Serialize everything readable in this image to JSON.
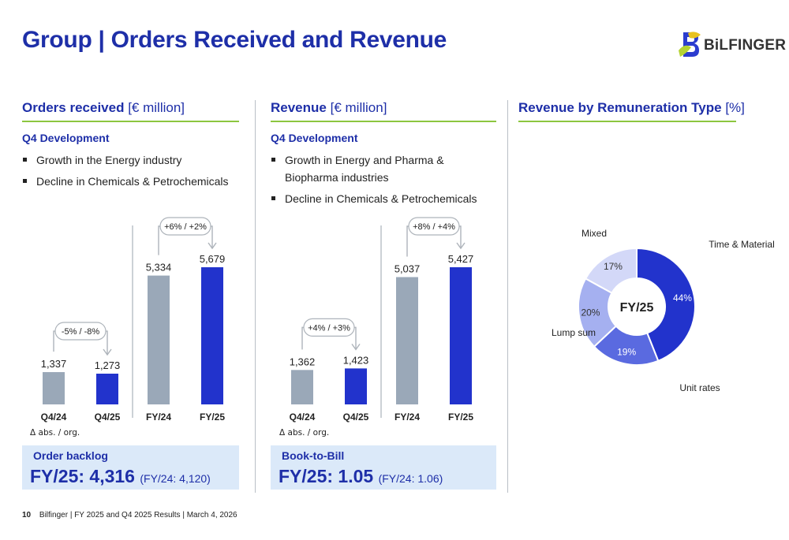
{
  "title": "Group | Orders Received and Revenue",
  "logo": {
    "text": "BiLFINGER",
    "icon": "bilfinger-b-icon"
  },
  "panels": {
    "orders": {
      "heading": "Orders received",
      "unit": "[€ million]",
      "sub_heading": "Q4 Development",
      "bullets": [
        "Growth in the Energy industry",
        "Decline in Chemicals & Petrochemicals"
      ],
      "note": "Δ abs. / org.",
      "kpi": {
        "label": "Order backlog",
        "value": "FY/25: 4,316",
        "prev": "(FY/24: 4,120)"
      }
    },
    "revenue": {
      "heading": "Revenue",
      "unit": "[€ million]",
      "sub_heading": "Q4 Development",
      "bullets": [
        "Growth in Energy and Pharma & Biopharma industries",
        "Decline in Chemicals & Petrochemicals"
      ],
      "note": "Δ abs. / org.",
      "kpi": {
        "label": "Book-to-Bill",
        "value": "FY/25: 1.05",
        "prev": "(FY/24: 1.06)"
      }
    },
    "remuneration": {
      "heading": "Revenue by Remuneration Type",
      "unit": "[%]"
    }
  },
  "colors": {
    "accent": "#1e2fa8",
    "bar_prior": "#9aa8b8",
    "bar_current": "#2233cc",
    "rule": "#8cc63f",
    "kpi_bg": "#dbe9f9"
  },
  "chart_data": [
    {
      "type": "bar",
      "categories": [
        "Q4/24",
        "Q4/25",
        "FY/24",
        "FY/25"
      ],
      "values": [
        1337,
        1273,
        5334,
        5679
      ],
      "value_labels": [
        "1,337",
        "1,273",
        "5,334",
        "5,679"
      ],
      "annotations": [
        "-5% / -8%",
        "+6% / +2%"
      ],
      "title": "",
      "xlabel": "",
      "ylabel": ""
    },
    {
      "type": "bar",
      "categories": [
        "Q4/24",
        "Q4/25",
        "FY/24",
        "FY/25"
      ],
      "values": [
        1362,
        1423,
        5037,
        5427
      ],
      "value_labels": [
        "1,362",
        "1,423",
        "5,037",
        "5,427"
      ],
      "annotations": [
        "+4% / +3%",
        "+8% / +4%"
      ],
      "title": "",
      "xlabel": "",
      "ylabel": ""
    },
    {
      "type": "pie",
      "center_label": "FY/25",
      "slices": [
        {
          "name": "Time & Material",
          "value": 44,
          "label": "44%",
          "color": "#2233cc"
        },
        {
          "name": "Unit rates",
          "value": 19,
          "label": "19%",
          "color": "#5a6ae0"
        },
        {
          "name": "Lump sum",
          "value": 20,
          "label": "20%",
          "color": "#a5b0f0"
        },
        {
          "name": "Mixed",
          "value": 17,
          "label": "17%",
          "color": "#d3d8f8"
        }
      ]
    }
  ],
  "footer": {
    "page": "10",
    "text": "Bilfinger | FY 2025 and Q4 2025 Results | March 4, 2026"
  }
}
